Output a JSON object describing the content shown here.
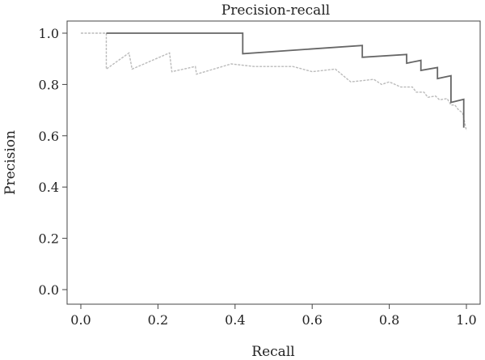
{
  "chart_data": {
    "type": "line",
    "title": "Precision-recall",
    "xlabel": "Recall",
    "ylabel": "Precision",
    "xlim": [
      0.0,
      1.0
    ],
    "ylim": [
      0.0,
      1.0
    ],
    "x_ticks": [
      "0.0",
      "0.2",
      "0.4",
      "0.6",
      "0.8",
      "1.0"
    ],
    "y_ticks": [
      "0.0",
      "0.2",
      "0.4",
      "0.6",
      "0.8",
      "1.0"
    ],
    "grid": false,
    "series": [
      {
        "style": "solid-dark",
        "color": "#666666",
        "points": [
          [
            0.066,
            1.0
          ],
          [
            0.42,
            1.0
          ],
          [
            0.42,
            0.92
          ],
          [
            0.73,
            0.952
          ],
          [
            0.73,
            0.906
          ],
          [
            0.845,
            0.917
          ],
          [
            0.845,
            0.883
          ],
          [
            0.882,
            0.894
          ],
          [
            0.882,
            0.855
          ],
          [
            0.925,
            0.866
          ],
          [
            0.925,
            0.823
          ],
          [
            0.96,
            0.834
          ],
          [
            0.96,
            0.73
          ],
          [
            0.993,
            0.742
          ],
          [
            0.993,
            0.632
          ]
        ]
      },
      {
        "style": "dashed-light",
        "color": "#bbbbbb",
        "points": [
          [
            0.0,
            1.0
          ],
          [
            0.066,
            1.0
          ],
          [
            0.066,
            0.86
          ],
          [
            0.125,
            0.923
          ],
          [
            0.133,
            0.86
          ],
          [
            0.23,
            0.923
          ],
          [
            0.236,
            0.85
          ],
          [
            0.297,
            0.87
          ],
          [
            0.3,
            0.84
          ],
          [
            0.39,
            0.88
          ],
          [
            0.45,
            0.87
          ],
          [
            0.55,
            0.87
          ],
          [
            0.6,
            0.85
          ],
          [
            0.66,
            0.86
          ],
          [
            0.7,
            0.81
          ],
          [
            0.76,
            0.82
          ],
          [
            0.78,
            0.8
          ],
          [
            0.8,
            0.81
          ],
          [
            0.83,
            0.79
          ],
          [
            0.86,
            0.79
          ],
          [
            0.87,
            0.77
          ],
          [
            0.89,
            0.77
          ],
          [
            0.9,
            0.75
          ],
          [
            0.92,
            0.755
          ],
          [
            0.93,
            0.74
          ],
          [
            0.95,
            0.745
          ],
          [
            0.96,
            0.72
          ],
          [
            0.97,
            0.72
          ],
          [
            0.98,
            0.7
          ],
          [
            0.99,
            0.69
          ],
          [
            1.0,
            0.62
          ]
        ]
      }
    ]
  }
}
